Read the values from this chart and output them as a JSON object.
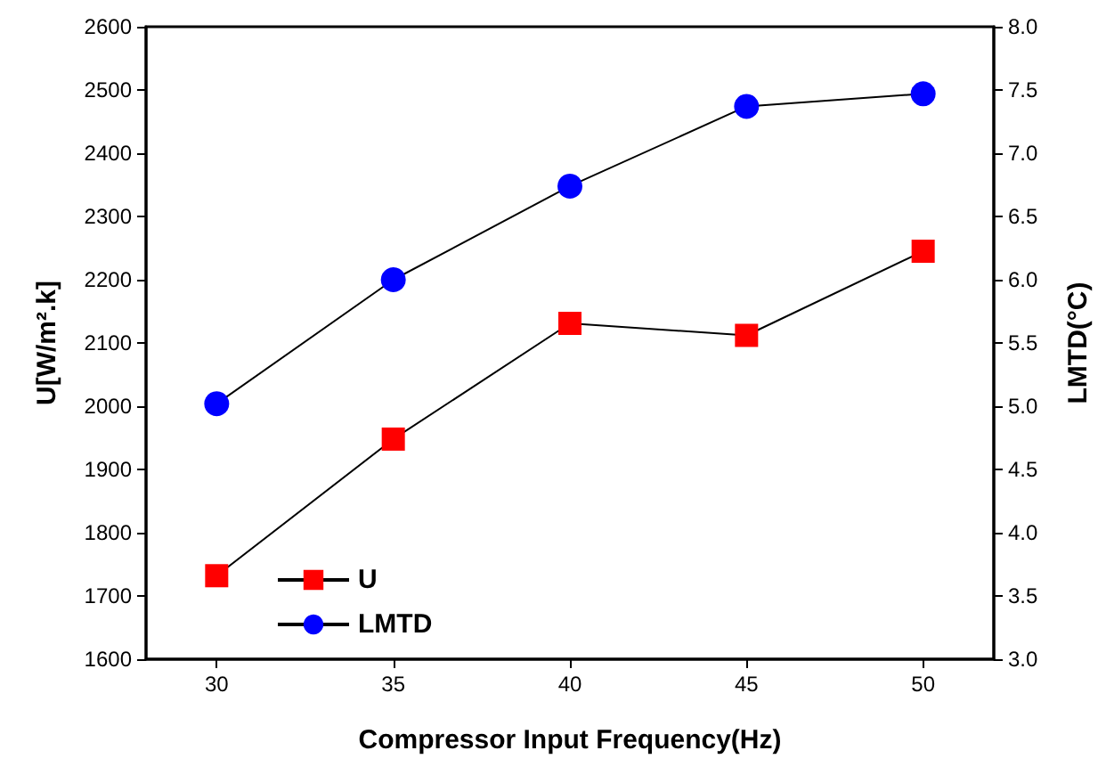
{
  "chart_data": {
    "type": "line",
    "xlabel": "Compressor Input Frequency(Hz)",
    "ylabel": "U[W/m².k]",
    "y2label": "LMTD(°C)",
    "x": [
      30,
      35,
      40,
      45,
      50
    ],
    "series": [
      {
        "name": "U",
        "color": "#ff0000",
        "marker": "square",
        "values": [
          1732,
          1948,
          2131,
          2112,
          2245
        ]
      },
      {
        "name": "LMTD",
        "color": "#0000ff",
        "marker": "circle",
        "axis": "y2",
        "values": [
          5.02,
          6.0,
          6.74,
          7.37,
          7.47
        ]
      }
    ],
    "xlim": [
      28,
      52
    ],
    "xticks": [
      30,
      35,
      40,
      45,
      50
    ],
    "ylim": [
      1600,
      2600
    ],
    "yticks": [
      1600,
      1700,
      1800,
      1900,
      2000,
      2100,
      2200,
      2300,
      2400,
      2500,
      2600
    ],
    "y2lim": [
      3,
      8
    ],
    "y2ticks": [
      {
        "value": 3,
        "label": "3.0"
      },
      {
        "value": 3.5,
        "label": "3.5"
      },
      {
        "value": 4,
        "label": "4.0"
      },
      {
        "value": 4.5,
        "label": "4.5"
      },
      {
        "value": 5,
        "label": "5.0"
      },
      {
        "value": 5.5,
        "label": "5.5"
      },
      {
        "value": 6,
        "label": "6.0"
      },
      {
        "value": 6.5,
        "label": "6.5"
      },
      {
        "value": 7,
        "label": "7.0"
      },
      {
        "value": 7.5,
        "label": "7.5"
      },
      {
        "value": 8,
        "label": "8.0"
      }
    ],
    "grid": false,
    "legend": "bottom left",
    "line_style": "solid"
  }
}
